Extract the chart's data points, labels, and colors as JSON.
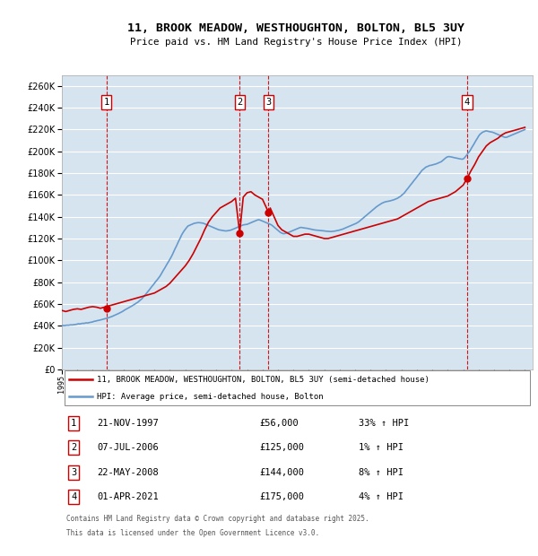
{
  "title": "11, BROOK MEADOW, WESTHOUGHTON, BOLTON, BL5 3UY",
  "subtitle": "Price paid vs. HM Land Registry's House Price Index (HPI)",
  "legend_line1": "11, BROOK MEADOW, WESTHOUGHTON, BOLTON, BL5 3UY (semi-detached house)",
  "legend_line2": "HPI: Average price, semi-detached house, Bolton",
  "footer1": "Contains HM Land Registry data © Crown copyright and database right 2025.",
  "footer2": "This data is licensed under the Open Government Licence v3.0.",
  "ylim": [
    0,
    270000
  ],
  "yticks": [
    0,
    20000,
    40000,
    60000,
    80000,
    100000,
    120000,
    140000,
    160000,
    180000,
    200000,
    220000,
    240000,
    260000
  ],
  "xlim_start": 1995.0,
  "xlim_end": 2025.5,
  "plot_bg_color": "#d6e4f0",
  "red_color": "#cc0000",
  "blue_color": "#6699cc",
  "grid_color": "#ffffff",
  "transactions": [
    {
      "num": 1,
      "date": "21-NOV-1997",
      "price": 56000,
      "hpi_pct": "33%",
      "direction": "↑",
      "x_year": 1997.89
    },
    {
      "num": 2,
      "date": "07-JUL-2006",
      "price": 125000,
      "hpi_pct": "1%",
      "direction": "↑",
      "x_year": 2006.52
    },
    {
      "num": 3,
      "date": "22-MAY-2008",
      "price": 144000,
      "hpi_pct": "8%",
      "direction": "↑",
      "x_year": 2008.39
    },
    {
      "num": 4,
      "date": "01-APR-2021",
      "price": 175000,
      "hpi_pct": "4%",
      "direction": "↑",
      "x_year": 2021.25
    }
  ],
  "hpi_x": [
    1995.0,
    1995.08,
    1995.17,
    1995.25,
    1995.33,
    1995.42,
    1995.5,
    1995.58,
    1995.67,
    1995.75,
    1995.83,
    1995.92,
    1996.0,
    1996.08,
    1996.17,
    1996.25,
    1996.33,
    1996.42,
    1996.5,
    1996.58,
    1996.67,
    1996.75,
    1996.83,
    1996.92,
    1997.0,
    1997.08,
    1997.17,
    1997.25,
    1997.33,
    1997.42,
    1997.5,
    1997.58,
    1997.67,
    1997.75,
    1997.83,
    1997.92,
    1998.0,
    1998.08,
    1998.17,
    1998.25,
    1998.33,
    1998.42,
    1998.5,
    1998.58,
    1998.67,
    1998.75,
    1998.83,
    1998.92,
    1999.0,
    1999.08,
    1999.17,
    1999.25,
    1999.33,
    1999.42,
    1999.5,
    1999.58,
    1999.67,
    1999.75,
    1999.83,
    1999.92,
    2000.0,
    2000.08,
    2000.17,
    2000.25,
    2000.33,
    2000.42,
    2000.5,
    2000.58,
    2000.67,
    2000.75,
    2000.83,
    2000.92,
    2001.0,
    2001.08,
    2001.17,
    2001.25,
    2001.33,
    2001.42,
    2001.5,
    2001.58,
    2001.67,
    2001.75,
    2001.83,
    2001.92,
    2002.0,
    2002.08,
    2002.17,
    2002.25,
    2002.33,
    2002.42,
    2002.5,
    2002.58,
    2002.67,
    2002.75,
    2002.83,
    2002.92,
    2003.0,
    2003.08,
    2003.17,
    2003.25,
    2003.33,
    2003.42,
    2003.5,
    2003.58,
    2003.67,
    2003.75,
    2003.83,
    2003.92,
    2004.0,
    2004.08,
    2004.17,
    2004.25,
    2004.33,
    2004.42,
    2004.5,
    2004.58,
    2004.67,
    2004.75,
    2004.83,
    2004.92,
    2005.0,
    2005.08,
    2005.17,
    2005.25,
    2005.33,
    2005.42,
    2005.5,
    2005.58,
    2005.67,
    2005.75,
    2005.83,
    2005.92,
    2006.0,
    2006.08,
    2006.17,
    2006.25,
    2006.33,
    2006.42,
    2006.5,
    2006.58,
    2006.67,
    2006.75,
    2006.83,
    2006.92,
    2007.0,
    2007.08,
    2007.17,
    2007.25,
    2007.33,
    2007.42,
    2007.5,
    2007.58,
    2007.67,
    2007.75,
    2007.83,
    2007.92,
    2008.0,
    2008.08,
    2008.17,
    2008.25,
    2008.33,
    2008.42,
    2008.5,
    2008.58,
    2008.67,
    2008.75,
    2008.83,
    2008.92,
    2009.0,
    2009.08,
    2009.17,
    2009.25,
    2009.33,
    2009.42,
    2009.5,
    2009.58,
    2009.67,
    2009.75,
    2009.83,
    2009.92,
    2010.0,
    2010.08,
    2010.17,
    2010.25,
    2010.33,
    2010.42,
    2010.5,
    2010.58,
    2010.67,
    2010.75,
    2010.83,
    2010.92,
    2011.0,
    2011.08,
    2011.17,
    2011.25,
    2011.33,
    2011.42,
    2011.5,
    2011.58,
    2011.67,
    2011.75,
    2011.83,
    2011.92,
    2012.0,
    2012.08,
    2012.17,
    2012.25,
    2012.33,
    2012.42,
    2012.5,
    2012.58,
    2012.67,
    2012.75,
    2012.83,
    2012.92,
    2013.0,
    2013.08,
    2013.17,
    2013.25,
    2013.33,
    2013.42,
    2013.5,
    2013.58,
    2013.67,
    2013.75,
    2013.83,
    2013.92,
    2014.0,
    2014.08,
    2014.17,
    2014.25,
    2014.33,
    2014.42,
    2014.5,
    2014.58,
    2014.67,
    2014.75,
    2014.83,
    2014.92,
    2015.0,
    2015.08,
    2015.17,
    2015.25,
    2015.33,
    2015.42,
    2015.5,
    2015.58,
    2015.67,
    2015.75,
    2015.83,
    2015.92,
    2016.0,
    2016.08,
    2016.17,
    2016.25,
    2016.33,
    2016.42,
    2016.5,
    2016.58,
    2016.67,
    2016.75,
    2016.83,
    2016.92,
    2017.0,
    2017.08,
    2017.17,
    2017.25,
    2017.33,
    2017.42,
    2017.5,
    2017.58,
    2017.67,
    2017.75,
    2017.83,
    2017.92,
    2018.0,
    2018.08,
    2018.17,
    2018.25,
    2018.33,
    2018.42,
    2018.5,
    2018.58,
    2018.67,
    2018.75,
    2018.83,
    2018.92,
    2019.0,
    2019.08,
    2019.17,
    2019.25,
    2019.33,
    2019.42,
    2019.5,
    2019.58,
    2019.67,
    2019.75,
    2019.83,
    2019.92,
    2020.0,
    2020.08,
    2020.17,
    2020.25,
    2020.33,
    2020.42,
    2020.5,
    2020.58,
    2020.67,
    2020.75,
    2020.83,
    2020.92,
    2021.0,
    2021.08,
    2021.17,
    2021.25,
    2021.33,
    2021.42,
    2021.5,
    2021.58,
    2021.67,
    2021.75,
    2021.83,
    2021.92,
    2022.0,
    2022.08,
    2022.17,
    2022.25,
    2022.33,
    2022.42,
    2022.5,
    2022.58,
    2022.67,
    2022.75,
    2022.83,
    2022.92,
    2023.0,
    2023.08,
    2023.17,
    2023.25,
    2023.33,
    2023.42,
    2023.5,
    2023.58,
    2023.67,
    2023.75,
    2023.83,
    2023.92,
    2024.0,
    2024.08,
    2024.17,
    2024.25,
    2024.33,
    2024.42,
    2024.5,
    2024.58,
    2024.67,
    2024.75,
    2024.83,
    2024.92,
    2025.0
  ],
  "hpi_y": [
    40000,
    40200,
    40100,
    40300,
    40500,
    40400,
    40600,
    40800,
    40700,
    40900,
    41000,
    41200,
    41500,
    41800,
    41600,
    41900,
    42200,
    42100,
    42400,
    42600,
    42500,
    42800,
    43000,
    43200,
    43500,
    44000,
    44200,
    44500,
    44800,
    45000,
    45300,
    45600,
    45900,
    46200,
    46500,
    46800,
    47200,
    47600,
    48000,
    48500,
    49000,
    49500,
    50000,
    50500,
    51200,
    51800,
    52400,
    53000,
    53800,
    54500,
    55200,
    55900,
    56500,
    57200,
    57800,
    58500,
    59200,
    60000,
    60800,
    61500,
    62500,
    63500,
    64500,
    65800,
    67000,
    68500,
    70000,
    71500,
    73000,
    74500,
    76000,
    77500,
    79000,
    80500,
    82000,
    83500,
    85000,
    87000,
    89000,
    91000,
    93000,
    95000,
    97000,
    99000,
    101000,
    103000,
    105500,
    108000,
    110500,
    113000,
    115500,
    118000,
    120500,
    123000,
    125000,
    127000,
    128500,
    130000,
    131500,
    132000,
    132500,
    133000,
    133500,
    134000,
    134200,
    134400,
    134600,
    134500,
    134400,
    134200,
    134000,
    133500,
    133000,
    132500,
    132000,
    131500,
    131000,
    130500,
    130000,
    129500,
    129000,
    128500,
    128000,
    127800,
    127600,
    127400,
    127200,
    127000,
    127000,
    127200,
    127400,
    127600,
    128000,
    128500,
    129000,
    129500,
    130000,
    130500,
    131000,
    131500,
    132000,
    132500,
    132700,
    132900,
    133000,
    133500,
    134000,
    134500,
    135000,
    135500,
    136000,
    136500,
    137000,
    137200,
    137000,
    136500,
    136000,
    135500,
    135000,
    134500,
    134000,
    133500,
    133000,
    132500,
    131500,
    130500,
    129500,
    128500,
    127500,
    126500,
    125500,
    125000,
    124500,
    124500,
    124800,
    125200,
    125500,
    126000,
    126500,
    127000,
    127500,
    128000,
    128500,
    129000,
    129500,
    130000,
    130200,
    130000,
    129800,
    129600,
    129500,
    129300,
    129000,
    128800,
    128500,
    128200,
    128000,
    127800,
    127700,
    127600,
    127500,
    127400,
    127300,
    127200,
    127000,
    126800,
    126700,
    126600,
    126500,
    126400,
    126500,
    126600,
    126800,
    127000,
    127300,
    127500,
    127800,
    128200,
    128500,
    129000,
    129500,
    130000,
    130500,
    131000,
    131500,
    132000,
    132500,
    133000,
    133500,
    134000,
    134800,
    135500,
    136500,
    137500,
    138500,
    139500,
    140500,
    141500,
    142500,
    143500,
    144500,
    145500,
    146500,
    147500,
    148500,
    149500,
    150200,
    151000,
    151800,
    152500,
    153000,
    153500,
    153800,
    154000,
    154200,
    154500,
    154800,
    155200,
    155500,
    156000,
    156500,
    157000,
    157800,
    158500,
    159500,
    160500,
    161500,
    163000,
    164500,
    166000,
    167500,
    169000,
    170500,
    172000,
    173500,
    175000,
    176500,
    178000,
    179500,
    181000,
    182500,
    183500,
    184500,
    185500,
    186000,
    186500,
    187000,
    187200,
    187500,
    187800,
    188200,
    188500,
    189000,
    189500,
    190000,
    190500,
    191500,
    192500,
    193500,
    194500,
    195000,
    195200,
    195000,
    194800,
    194500,
    194200,
    194000,
    193800,
    193500,
    193200,
    193000,
    192800,
    193000,
    194000,
    195500,
    197000,
    198500,
    200000,
    202000,
    204000,
    206000,
    208000,
    210000,
    212000,
    214000,
    215500,
    216500,
    217500,
    218000,
    218500,
    218800,
    218500,
    218200,
    218000,
    217800,
    217500,
    217000,
    216500,
    216000,
    215500,
    215000,
    214500,
    214000,
    213500,
    213000,
    212800,
    213000,
    213500,
    214000,
    214500,
    215000,
    215500,
    216000,
    216500,
    217000,
    217500,
    218000,
    218500,
    219000,
    219500,
    220000
  ],
  "prop_x": [
    1995.0,
    1995.25,
    1995.5,
    1995.75,
    1996.0,
    1996.25,
    1996.5,
    1996.75,
    1997.0,
    1997.25,
    1997.5,
    1997.75,
    1997.89,
    1998.0,
    1998.25,
    1998.5,
    1998.75,
    1999.0,
    1999.25,
    1999.5,
    1999.75,
    2000.0,
    2000.25,
    2000.5,
    2000.75,
    2001.0,
    2001.25,
    2001.5,
    2001.75,
    2002.0,
    2002.25,
    2002.5,
    2002.75,
    2003.0,
    2003.25,
    2003.5,
    2003.75,
    2004.0,
    2004.25,
    2004.5,
    2004.75,
    2005.0,
    2005.25,
    2005.5,
    2005.75,
    2006.0,
    2006.25,
    2006.52,
    2006.75,
    2007.0,
    2007.25,
    2007.5,
    2007.75,
    2008.0,
    2008.39,
    2008.5,
    2008.75,
    2009.0,
    2009.25,
    2009.5,
    2009.75,
    2010.0,
    2010.25,
    2010.5,
    2010.75,
    2011.0,
    2011.25,
    2011.5,
    2011.75,
    2012.0,
    2012.25,
    2012.5,
    2012.75,
    2013.0,
    2013.25,
    2013.5,
    2013.75,
    2014.0,
    2014.25,
    2014.5,
    2014.75,
    2015.0,
    2015.25,
    2015.5,
    2015.75,
    2016.0,
    2016.25,
    2016.5,
    2016.75,
    2017.0,
    2017.25,
    2017.5,
    2017.75,
    2018.0,
    2018.25,
    2018.5,
    2018.75,
    2019.0,
    2019.25,
    2019.5,
    2019.75,
    2020.0,
    2020.25,
    2020.5,
    2020.75,
    2021.0,
    2021.25,
    2021.5,
    2021.75,
    2022.0,
    2022.25,
    2022.5,
    2022.75,
    2023.0,
    2023.25,
    2023.5,
    2023.75,
    2024.0,
    2024.25,
    2024.5,
    2024.75,
    2025.0
  ],
  "prop_y": [
    54000,
    53000,
    54000,
    55000,
    55500,
    55000,
    56000,
    57000,
    57500,
    57000,
    56000,
    57000,
    56000,
    58000,
    59000,
    60000,
    61000,
    62000,
    63000,
    64000,
    65000,
    66000,
    67000,
    68000,
    69000,
    70000,
    72000,
    74000,
    76000,
    79000,
    83000,
    87000,
    91000,
    95000,
    100000,
    106000,
    113000,
    120000,
    128000,
    135000,
    140000,
    144000,
    148000,
    150000,
    152000,
    154000,
    157000,
    125000,
    158000,
    162000,
    163000,
    160000,
    158000,
    156000,
    144000,
    148000,
    140000,
    132000,
    128000,
    126000,
    124000,
    122000,
    122000,
    123000,
    124000,
    124000,
    123000,
    122000,
    121000,
    120000,
    120000,
    121000,
    122000,
    123000,
    124000,
    125000,
    126000,
    127000,
    128000,
    129000,
    130000,
    131000,
    132000,
    133000,
    134000,
    135000,
    136000,
    137000,
    138000,
    140000,
    142000,
    144000,
    146000,
    148000,
    150000,
    152000,
    154000,
    155000,
    156000,
    157000,
    158000,
    159000,
    161000,
    163000,
    166000,
    169000,
    175000,
    182000,
    188000,
    195000,
    200000,
    205000,
    208000,
    210000,
    212000,
    215000,
    217000,
    218000,
    219000,
    220000,
    221000,
    222000
  ]
}
